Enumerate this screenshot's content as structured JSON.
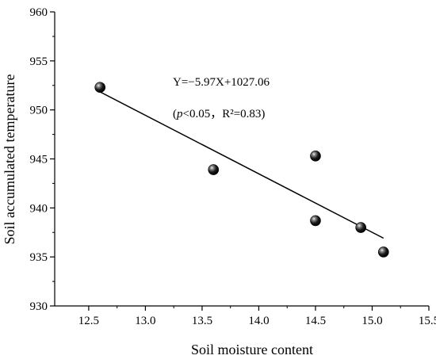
{
  "chart_data": {
    "type": "scatter",
    "title": "",
    "xlabel": "Soil moisture content",
    "ylabel": "Soil accumulated temperature",
    "xlim": [
      12.2,
      15.5
    ],
    "ylim": [
      930,
      960
    ],
    "x_ticks": [
      "12.5",
      "13.0",
      "13.5",
      "14.0",
      "14.5",
      "15.0",
      "15.5"
    ],
    "y_ticks": [
      "930",
      "935",
      "940",
      "945",
      "950",
      "955",
      "960"
    ],
    "grid": false,
    "legend": "none",
    "series": [
      {
        "points": [
          {
            "x": 12.6,
            "y": 952.3
          },
          {
            "x": 13.6,
            "y": 943.9
          },
          {
            "x": 14.5,
            "y": 945.3
          },
          {
            "x": 14.5,
            "y": 938.7
          },
          {
            "x": 14.9,
            "y": 938.0
          },
          {
            "x": 15.1,
            "y": 935.5
          }
        ],
        "color": "#000000"
      }
    ],
    "fit_line": {
      "slope": -5.97,
      "intercept": 1027.06,
      "x_range": [
        12.6,
        15.1
      ]
    },
    "annotations": {
      "equation": "Y=−5.97X+1027.06",
      "stats": "(p<0.05，R²=0.83)"
    }
  }
}
